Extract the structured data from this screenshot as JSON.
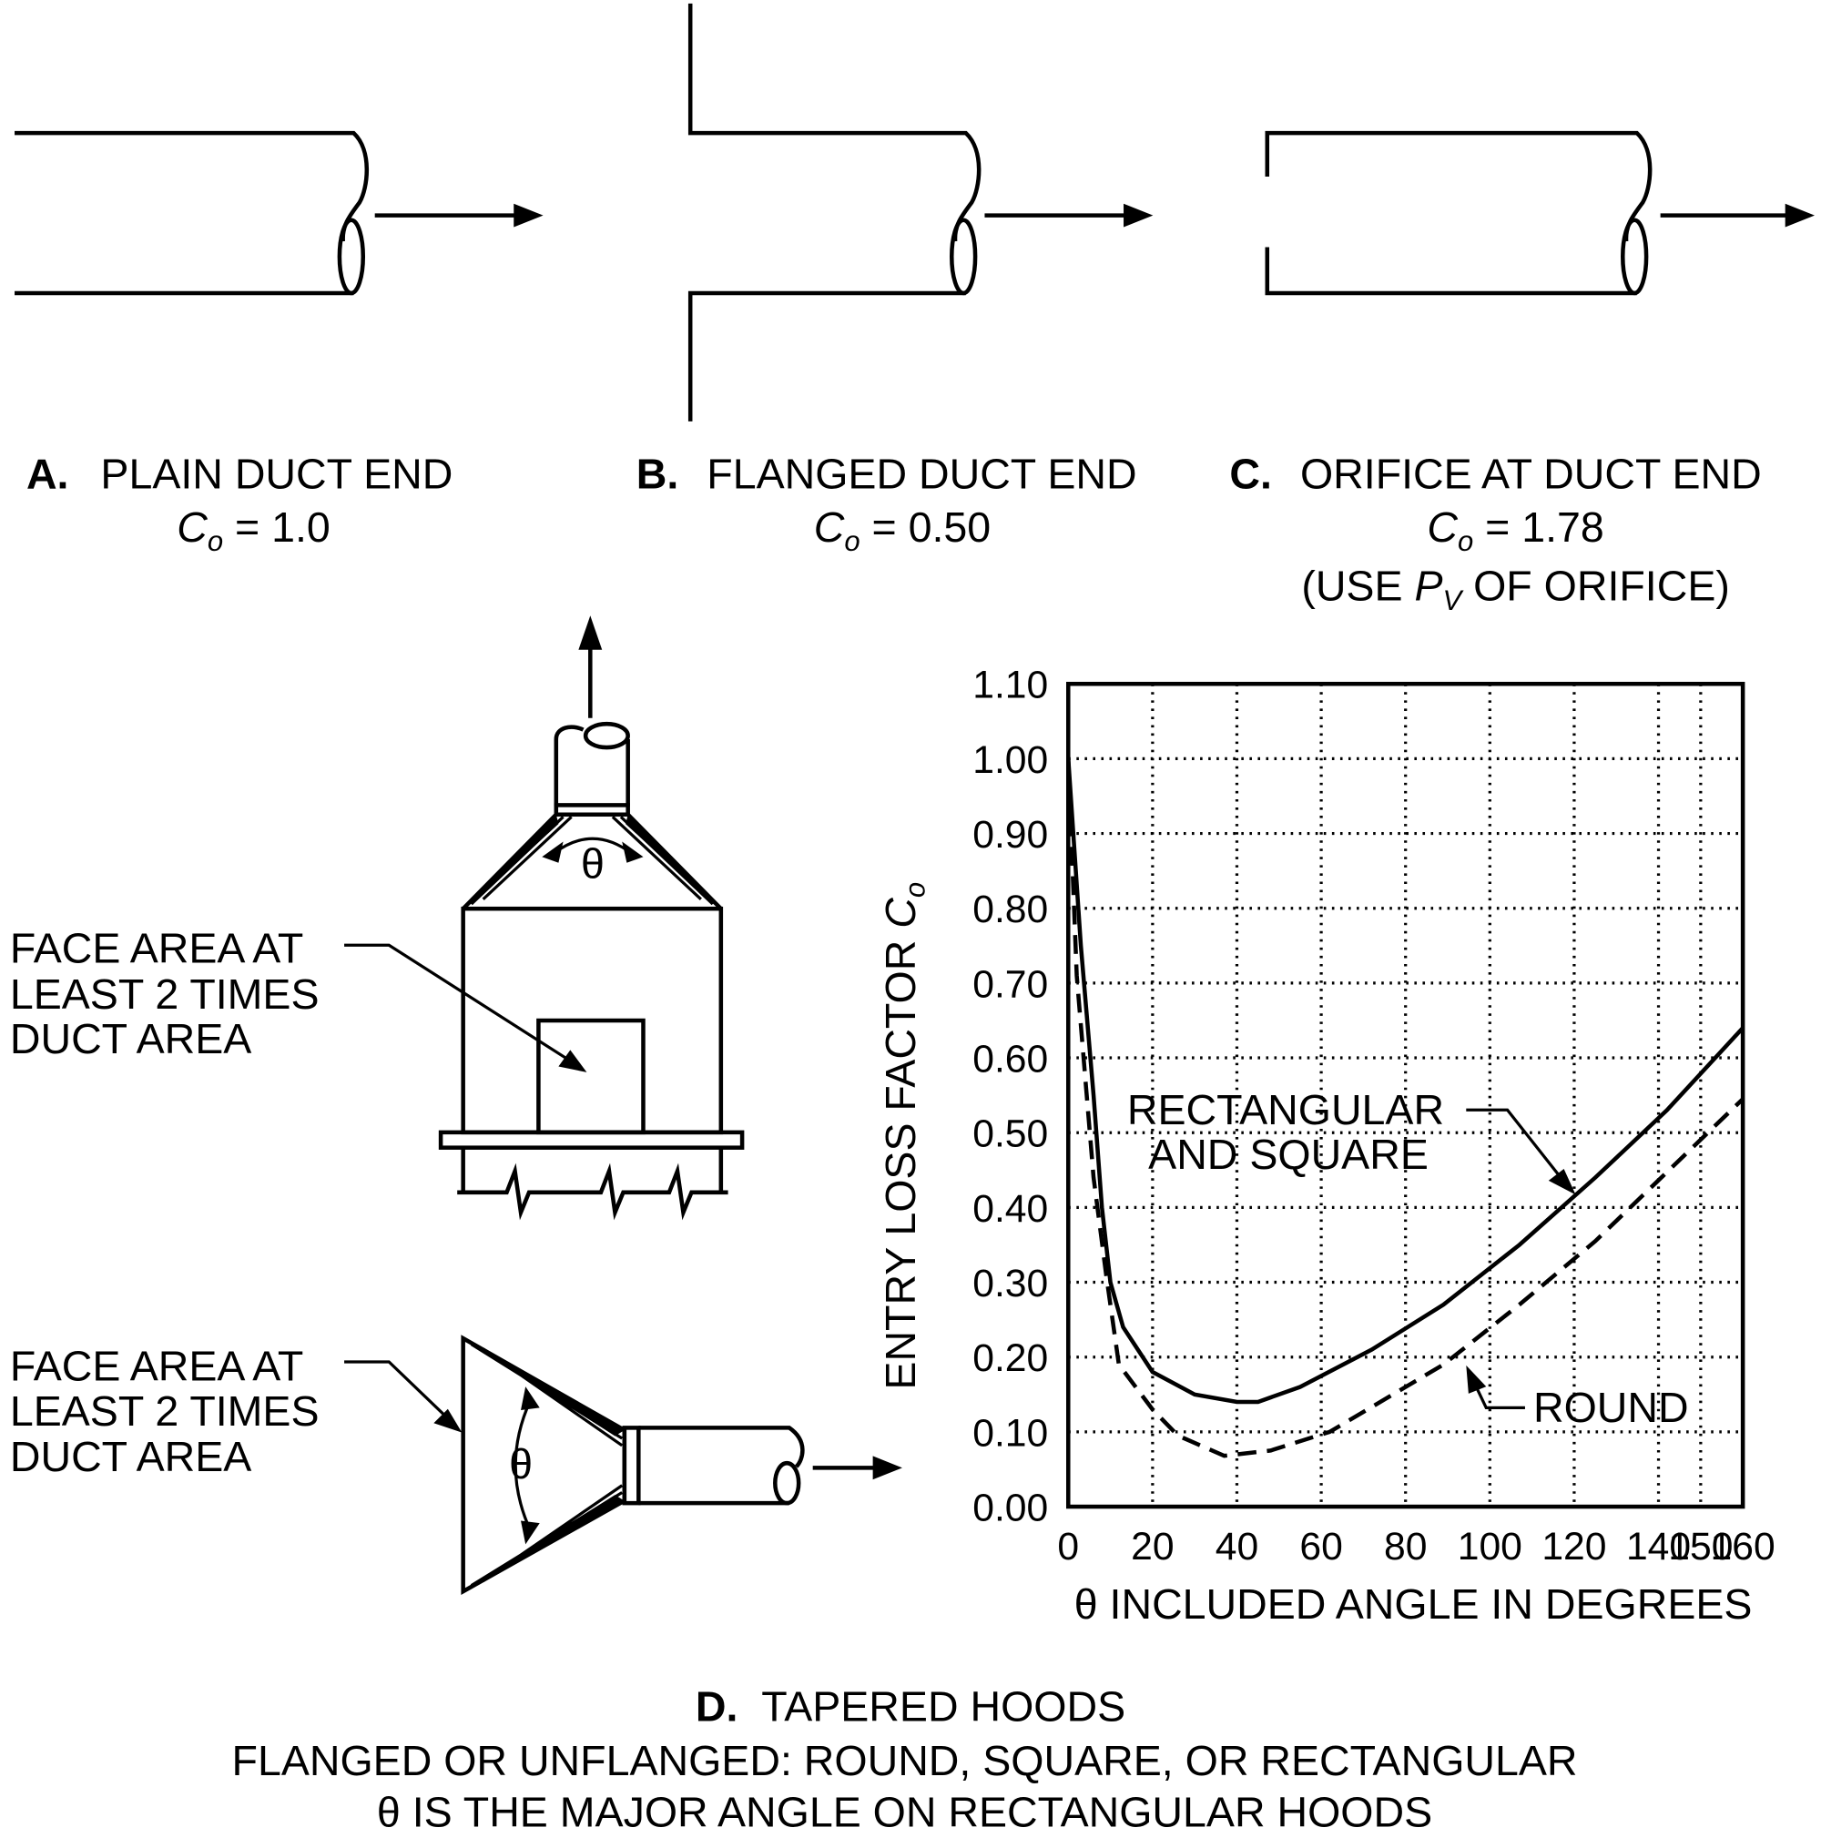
{
  "duct_ends": [
    {
      "letter": "A.",
      "title": "PLAIN DUCT END",
      "coefficient": {
        "symbol": "C",
        "subscript": "o",
        "text": " = 1.0"
      }
    },
    {
      "letter": "B.",
      "title": "FLANGED DUCT END",
      "coefficient": {
        "symbol": "C",
        "subscript": "o",
        "text": " = 0.50"
      }
    },
    {
      "letter": "C.",
      "title": "ORIFICE AT DUCT END",
      "coefficient": {
        "symbol": "C",
        "subscript": "o",
        "text": " = 1.78"
      },
      "note": {
        "before": "(USE ",
        "symbol": "P",
        "subscript": "V",
        "after": " OF ORIFICE)"
      }
    }
  ],
  "hoods": [
    {
      "angle_label": "θ",
      "callout": [
        "FACE AREA AT",
        "LEAST 2 TIMES",
        "DUCT AREA"
      ]
    },
    {
      "angle_label": "θ",
      "callout": [
        "FACE AREA AT",
        "LEAST 2 TIMES",
        "DUCT AREA"
      ]
    }
  ],
  "caption": {
    "letter": "D.",
    "title": "TAPERED HOODS",
    "lines": [
      "FLANGED OR UNFLANGED: ROUND, SQUARE, OR RECTANGULAR",
      "θ IS THE MAJOR ANGLE ON RECTANGULAR HOODS"
    ]
  },
  "chart_data": {
    "type": "line",
    "xlabel": "θ INCLUDED ANGLE IN DEGREES",
    "ylabel": {
      "text": "ENTRY LOSS FACTOR ",
      "symbol": "C",
      "subscript": "o"
    },
    "xlim": [
      0,
      160
    ],
    "ylim": [
      0,
      1.1
    ],
    "xticks": [
      0,
      20,
      40,
      60,
      80,
      100,
      120,
      140,
      150,
      160
    ],
    "yticks": [
      {
        "value": 0,
        "label": "0.00"
      },
      {
        "value": 0.1,
        "label": "0.10"
      },
      {
        "value": 0.2,
        "label": "0.20"
      },
      {
        "value": 0.3,
        "label": "0.30"
      },
      {
        "value": 0.4,
        "label": "0.40"
      },
      {
        "value": 0.5,
        "label": "0.50"
      },
      {
        "value": 0.6,
        "label": "0.60"
      },
      {
        "value": 0.7,
        "label": "0.70"
      },
      {
        "value": 0.8,
        "label": "0.80"
      },
      {
        "value": 0.9,
        "label": "0.90"
      },
      {
        "value": 1,
        "label": "1.00"
      },
      {
        "value": 1.1,
        "label": "1.10"
      }
    ],
    "grid": true,
    "series": [
      {
        "name_lines": [
          "RECTANGULAR",
          "AND SQUARE"
        ],
        "color": "#000000",
        "line_style": "solid",
        "x": [
          0,
          3,
          6,
          8,
          10,
          13,
          20,
          30,
          40,
          45,
          55,
          72,
          89,
          107,
          125,
          142,
          160
        ],
        "values": [
          1.0,
          0.75,
          0.55,
          0.4,
          0.3,
          0.24,
          0.18,
          0.15,
          0.14,
          0.14,
          0.16,
          0.21,
          0.27,
          0.35,
          0.44,
          0.53,
          0.64
        ]
      },
      {
        "name_lines": [
          "ROUND"
        ],
        "color": "#000000",
        "line_style": "dashed",
        "x": [
          0,
          2,
          6,
          9,
          12,
          20,
          26,
          37,
          48,
          62,
          89,
          107,
          125,
          160
        ],
        "values": [
          1.0,
          0.71,
          0.44,
          0.31,
          0.19,
          0.13,
          0.095,
          0.068,
          0.075,
          0.1,
          0.19,
          0.27,
          0.355,
          0.545
        ]
      }
    ]
  }
}
